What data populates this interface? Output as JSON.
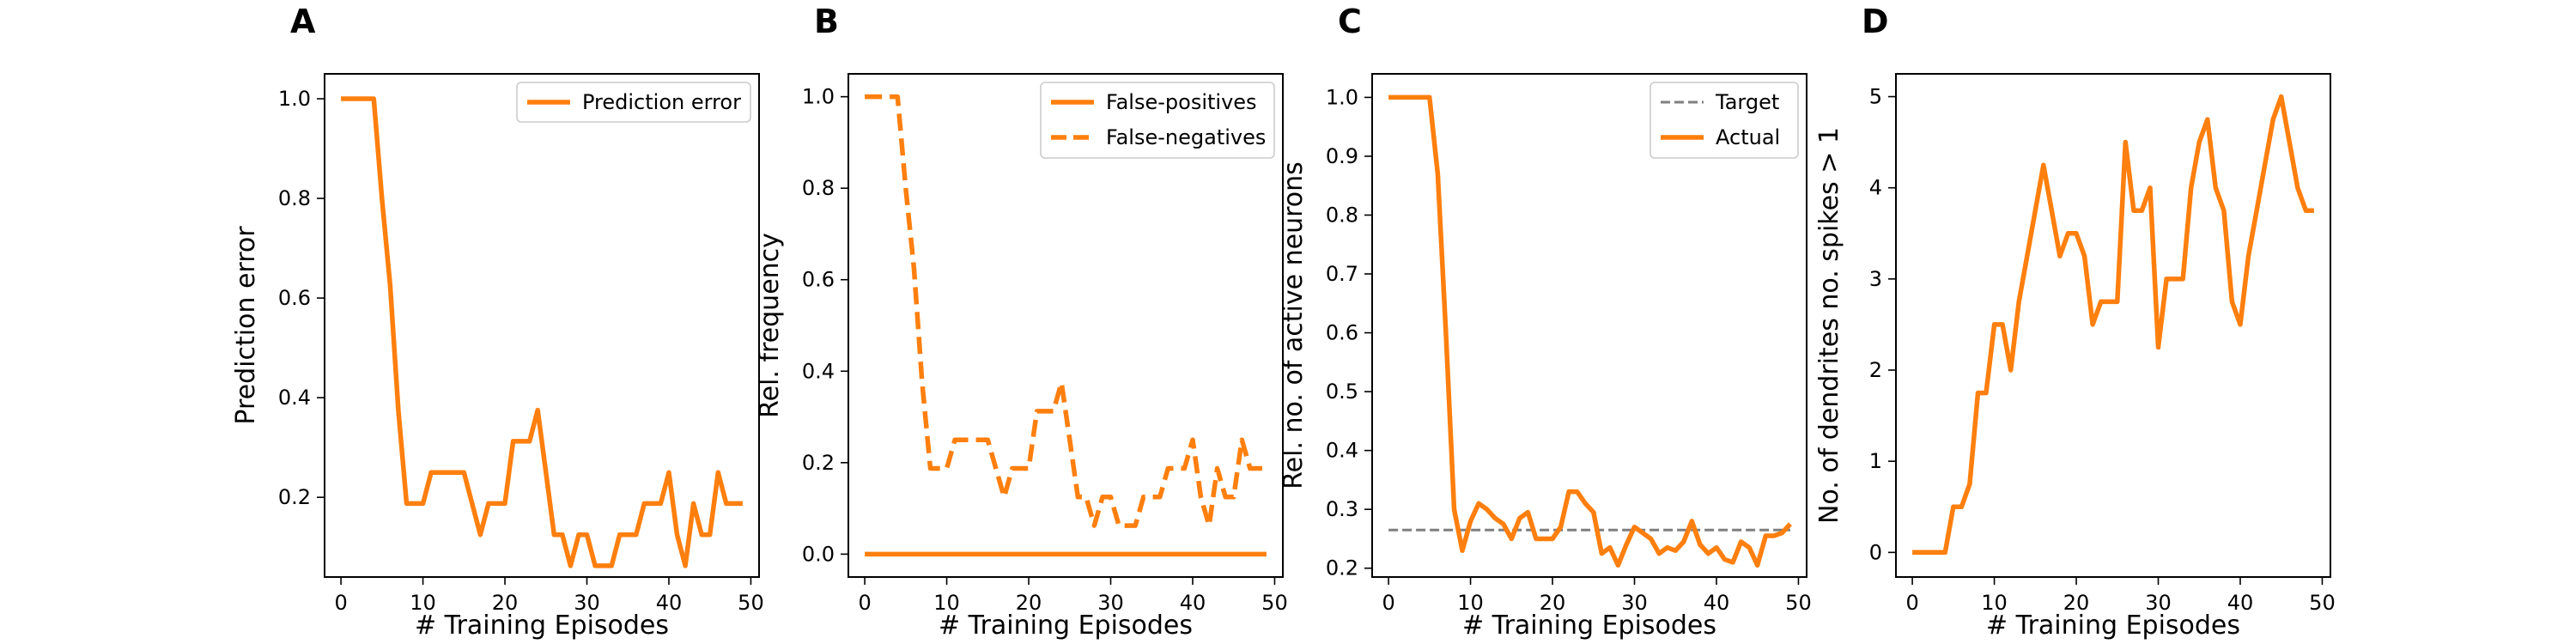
{
  "colors": {
    "accent": "#ff7f0e",
    "target": "#7f7f7f",
    "frame": "#000000",
    "legend_border": "#cccccc"
  },
  "chart_data": [
    {
      "type": "line",
      "panel": "A",
      "xlabel": "# Training Episodes",
      "ylabel": "Prediction error",
      "xlim": [
        -2,
        51
      ],
      "ylim": [
        0.04,
        1.05
      ],
      "xticks": [
        0,
        10,
        20,
        30,
        40,
        50
      ],
      "yticks": [
        0.2,
        0.4,
        0.6,
        0.8,
        1.0
      ],
      "ytick_labels": [
        "0.2",
        "0.4",
        "0.6",
        "0.8",
        "1.0"
      ],
      "legend_position": "top-right",
      "series": [
        {
          "name": "Prediction error",
          "style": "solid",
          "x": [
            0,
            1,
            2,
            3,
            4,
            5,
            6,
            7,
            8,
            9,
            10,
            11,
            12,
            13,
            14,
            15,
            16,
            17,
            18,
            19,
            20,
            21,
            22,
            23,
            24,
            25,
            26,
            27,
            28,
            29,
            30,
            31,
            32,
            33,
            34,
            35,
            36,
            37,
            38,
            39,
            40,
            41,
            42,
            43,
            44,
            45,
            46,
            47,
            48,
            49
          ],
          "y": [
            1.0,
            1.0,
            1.0,
            1.0,
            1.0,
            0.8,
            0.625,
            0.375,
            0.1875,
            0.1875,
            0.1875,
            0.25,
            0.25,
            0.25,
            0.25,
            0.25,
            0.1875,
            0.125,
            0.1875,
            0.1875,
            0.1875,
            0.3125,
            0.3125,
            0.3125,
            0.375,
            0.25,
            0.125,
            0.125,
            0.0625,
            0.125,
            0.125,
            0.0625,
            0.0625,
            0.0625,
            0.125,
            0.125,
            0.125,
            0.1875,
            0.1875,
            0.1875,
            0.25,
            0.125,
            0.0625,
            0.1875,
            0.125,
            0.125,
            0.25,
            0.1875,
            0.1875,
            0.1875
          ]
        }
      ]
    },
    {
      "type": "line",
      "panel": "B",
      "xlabel": "# Training Episodes",
      "ylabel": "Rel. frequency",
      "xlim": [
        -2,
        51
      ],
      "ylim": [
        -0.05,
        1.05
      ],
      "xticks": [
        0,
        10,
        20,
        30,
        40,
        50
      ],
      "yticks": [
        0.0,
        0.2,
        0.4,
        0.6,
        0.8,
        1.0
      ],
      "ytick_labels": [
        "0.0",
        "0.2",
        "0.4",
        "0.6",
        "0.8",
        "1.0"
      ],
      "legend_position": "top-right",
      "series": [
        {
          "name": "False-positives",
          "style": "solid",
          "x": [
            0,
            49
          ],
          "y": [
            0.0,
            0.0
          ]
        },
        {
          "name": "False-negatives",
          "style": "dashed",
          "x": [
            0,
            1,
            2,
            3,
            4,
            5,
            6,
            7,
            8,
            9,
            10,
            11,
            12,
            13,
            14,
            15,
            16,
            17,
            18,
            19,
            20,
            21,
            22,
            23,
            24,
            25,
            26,
            27,
            28,
            29,
            30,
            31,
            32,
            33,
            34,
            35,
            36,
            37,
            38,
            39,
            40,
            41,
            42,
            43,
            44,
            45,
            46,
            47,
            48,
            49
          ],
          "y": [
            1.0,
            1.0,
            1.0,
            1.0,
            1.0,
            0.8,
            0.625,
            0.375,
            0.1875,
            0.1875,
            0.1875,
            0.25,
            0.25,
            0.25,
            0.25,
            0.25,
            0.1875,
            0.125,
            0.1875,
            0.1875,
            0.1875,
            0.3125,
            0.3125,
            0.3125,
            0.375,
            0.25,
            0.125,
            0.125,
            0.0625,
            0.125,
            0.125,
            0.0625,
            0.0625,
            0.0625,
            0.125,
            0.125,
            0.125,
            0.1875,
            0.1875,
            0.1875,
            0.25,
            0.125,
            0.0625,
            0.1875,
            0.125,
            0.125,
            0.25,
            0.1875,
            0.1875,
            0.1875
          ]
        }
      ]
    },
    {
      "type": "line",
      "panel": "C",
      "xlabel": "# Training Episodes",
      "ylabel": "Rel. no. of active neurons",
      "xlim": [
        -2,
        51
      ],
      "ylim": [
        0.185,
        1.04
      ],
      "xticks": [
        0,
        10,
        20,
        30,
        40,
        50
      ],
      "yticks": [
        0.2,
        0.3,
        0.4,
        0.5,
        0.6,
        0.7,
        0.8,
        0.9,
        1.0
      ],
      "ytick_labels": [
        "0.2",
        "0.3",
        "0.4",
        "0.5",
        "0.6",
        "0.7",
        "0.8",
        "0.9",
        "1.0"
      ],
      "legend_position": "top-right",
      "series": [
        {
          "name": "Target",
          "style": "dashed",
          "color": "target",
          "x": [
            0,
            49
          ],
          "y": [
            0.265,
            0.265
          ]
        },
        {
          "name": "Actual",
          "style": "solid",
          "x": [
            0,
            1,
            2,
            3,
            4,
            5,
            6,
            7,
            8,
            9,
            10,
            11,
            12,
            13,
            14,
            15,
            16,
            17,
            18,
            19,
            20,
            21,
            22,
            23,
            24,
            25,
            26,
            27,
            28,
            29,
            30,
            31,
            32,
            33,
            34,
            35,
            36,
            37,
            38,
            39,
            40,
            41,
            42,
            43,
            44,
            45,
            46,
            47,
            48,
            49
          ],
          "y": [
            1.0,
            1.0,
            1.0,
            1.0,
            1.0,
            1.0,
            0.87,
            0.6,
            0.3,
            0.23,
            0.28,
            0.31,
            0.3,
            0.285,
            0.275,
            0.25,
            0.285,
            0.295,
            0.25,
            0.25,
            0.25,
            0.27,
            0.33,
            0.33,
            0.31,
            0.295,
            0.225,
            0.235,
            0.205,
            0.24,
            0.27,
            0.26,
            0.25,
            0.225,
            0.235,
            0.23,
            0.245,
            0.28,
            0.24,
            0.225,
            0.235,
            0.215,
            0.21,
            0.245,
            0.235,
            0.205,
            0.255,
            0.255,
            0.26,
            0.275
          ]
        }
      ]
    },
    {
      "type": "line",
      "panel": "D",
      "xlabel": "# Training Episodes",
      "ylabel": "No. of dendrites no. spikes > 1",
      "xlim": [
        -2,
        51
      ],
      "ylim": [
        -0.27,
        5.25
      ],
      "xticks": [
        0,
        10,
        20,
        30,
        40,
        50
      ],
      "yticks": [
        0,
        1,
        2,
        3,
        4,
        5
      ],
      "ytick_labels": [
        "0",
        "1",
        "2",
        "3",
        "4",
        "5"
      ],
      "legend_position": "none",
      "series": [
        {
          "name": "",
          "style": "solid",
          "x": [
            0,
            1,
            2,
            3,
            4,
            5,
            6,
            7,
            8,
            9,
            10,
            11,
            12,
            13,
            14,
            15,
            16,
            17,
            18,
            19,
            20,
            21,
            22,
            23,
            24,
            25,
            26,
            27,
            28,
            29,
            30,
            31,
            32,
            33,
            34,
            35,
            36,
            37,
            38,
            39,
            40,
            41,
            42,
            43,
            44,
            45,
            46,
            47,
            48,
            49
          ],
          "y": [
            0,
            0,
            0,
            0,
            0,
            0.5,
            0.5,
            0.75,
            1.75,
            1.75,
            2.5,
            2.5,
            2.0,
            2.75,
            3.25,
            3.75,
            4.25,
            3.75,
            3.25,
            3.5,
            3.5,
            3.25,
            2.5,
            2.75,
            2.75,
            2.75,
            4.5,
            3.75,
            3.75,
            4.0,
            2.25,
            3.0,
            3.0,
            3.0,
            4.0,
            4.5,
            4.75,
            4.0,
            3.75,
            2.75,
            2.5,
            3.25,
            3.75,
            4.25,
            4.75,
            5.0,
            4.5,
            4.0,
            3.75,
            3.75
          ]
        }
      ]
    }
  ]
}
